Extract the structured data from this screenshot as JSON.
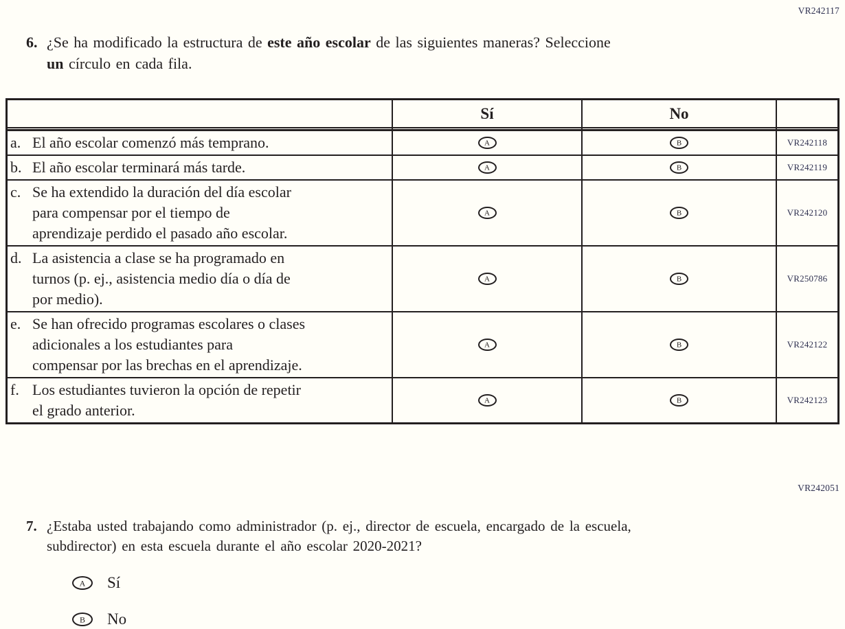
{
  "colors": {
    "paper": "#fffef8",
    "ink": "#231f20",
    "code_ink": "#2e3050"
  },
  "codes": {
    "question6_section": "VR242117",
    "question7_section": "VR242051"
  },
  "question6": {
    "number": "6.",
    "lines": [
      [
        {
          "t": "¿Se ha modificado la estructura de "
        },
        {
          "t": "este año escolar",
          "b": true
        },
        {
          "t": " de las siguientes maneras? Seleccione"
        }
      ],
      [
        {
          "t": "un",
          "b": true
        },
        {
          "t": " círculo en cada fila."
        }
      ]
    ],
    "table": {
      "col_headers": [
        "",
        "Sí",
        "No",
        ""
      ],
      "yes_bubble_letter": "A",
      "no_bubble_letter": "B",
      "rows": [
        {
          "letter": "a.",
          "lines": [
            "El año escolar comenzó más temprano."
          ],
          "code": "VR242118"
        },
        {
          "letter": "b.",
          "lines": [
            "El año escolar terminará más tarde."
          ],
          "code": "VR242119"
        },
        {
          "letter": "c.",
          "lines": [
            "Se ha extendido la duración del día escolar",
            "para compensar por el tiempo de",
            "aprendizaje perdido el pasado año escolar."
          ],
          "code": "VR242120"
        },
        {
          "letter": "d.",
          "lines": [
            "La asistencia a clase se ha programado en",
            "turnos (p. ej., asistencia medio día o día de",
            "por medio)."
          ],
          "code": "VR250786"
        },
        {
          "letter": "e.",
          "lines": [
            "Se han ofrecido programas escolares o clases",
            "adicionales a los estudiantes para",
            "compensar por las brechas en el aprendizaje."
          ],
          "code": "VR242122"
        },
        {
          "letter": "f.",
          "lines": [
            "Los estudiantes tuvieron la opción de repetir",
            "el grado anterior."
          ],
          "code": "VR242123"
        }
      ]
    }
  },
  "question7": {
    "number": "7.",
    "lines": [
      [
        {
          "t": "¿Estaba usted trabajando como administrador (p. ej., director de escuela, encargado de la escuela,"
        }
      ],
      [
        {
          "t": "subdirector) en esta escuela durante el año escolar 2020-2021?"
        }
      ]
    ],
    "options": [
      {
        "letter": "A",
        "label": "Sí"
      },
      {
        "letter": "B",
        "label": "No"
      }
    ]
  }
}
